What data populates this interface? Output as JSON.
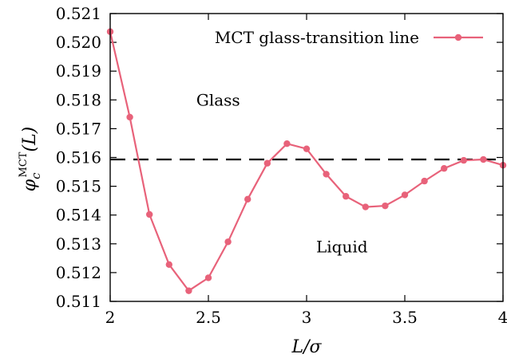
{
  "chart_data": {
    "type": "line",
    "xlabel": "L/σ",
    "ylabel_main": "φ",
    "ylabel_sub": "c",
    "ylabel_sup": "MCT",
    "ylabel_arg": "(L)",
    "xlim": [
      2,
      4
    ],
    "ylim": [
      0.511,
      0.521
    ],
    "x_ticks": [
      2,
      2.5,
      3,
      3.5,
      4
    ],
    "x_tick_labels": [
      "2",
      "2.5",
      "3",
      "3.5",
      "4"
    ],
    "y_ticks": [
      0.511,
      0.512,
      0.513,
      0.514,
      0.515,
      0.516,
      0.517,
      0.518,
      0.519,
      0.52,
      0.521
    ],
    "y_tick_labels": [
      "0.511",
      "0.512",
      "0.513",
      "0.514",
      "0.515",
      "0.516",
      "0.517",
      "0.518",
      "0.519",
      "0.520",
      "0.521"
    ],
    "legend_position": "top-right",
    "series": [
      {
        "name": "MCT glass-transition line",
        "color": "#e8627a",
        "x": [
          2.0,
          2.1,
          2.2,
          2.3,
          2.4,
          2.5,
          2.6,
          2.7,
          2.8,
          2.9,
          3.0,
          3.1,
          3.2,
          3.3,
          3.4,
          3.5,
          3.6,
          3.7,
          3.8,
          3.9,
          4.0
        ],
        "y": [
          0.52037,
          0.5174,
          0.51402,
          0.51228,
          0.51137,
          0.51182,
          0.51307,
          0.51455,
          0.5158,
          0.51648,
          0.5163,
          0.51542,
          0.51465,
          0.51428,
          0.51432,
          0.5147,
          0.51518,
          0.51562,
          0.5159,
          0.51593,
          0.51573
        ]
      }
    ],
    "reference_line": {
      "y": 0.51593,
      "style": "dashed",
      "color": "#000000"
    },
    "annotations": [
      {
        "text": "Glass",
        "x": 2.55,
        "y": 0.518
      },
      {
        "text": "Liquid",
        "x": 3.18,
        "y": 0.5129
      }
    ]
  }
}
